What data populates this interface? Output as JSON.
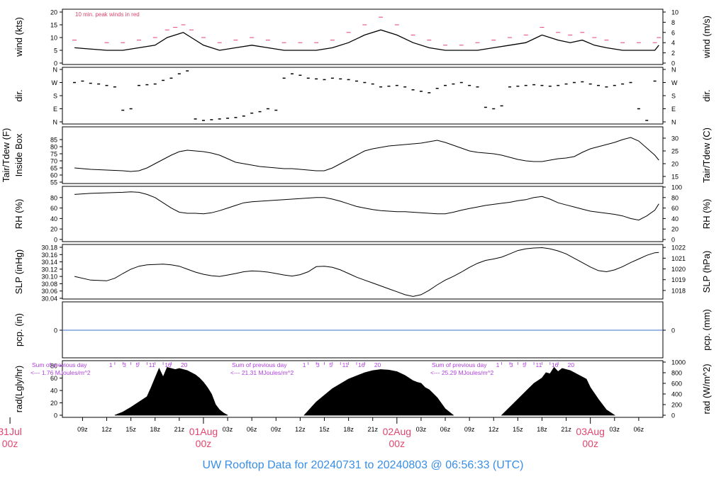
{
  "title": "UW Rooftop Data for 20240731  to  20240803 @ 06:56:33  (UTC)",
  "colors": {
    "trace": "#000000",
    "peak": "#e0466e",
    "pcp_line": "#3b6fc9",
    "annotation": "#b040e0",
    "date_label": "#e0466e",
    "title": "#3a8ee6",
    "frame": "#000000"
  },
  "chart_data": [
    {
      "id": "wind",
      "type": "line",
      "ylabel_left": "wind (kts)",
      "ylabel_right": "wind (m/s)",
      "ylim": [
        0,
        20
      ],
      "yticks_left": [
        "0",
        "5",
        "10",
        "15",
        "20"
      ],
      "yticks_right": [
        "0",
        "2",
        "4",
        "6",
        "8",
        "10"
      ],
      "annotation": "10 min. peak winds in red",
      "series": [
        {
          "key": "mean",
          "x": [
            8,
            12,
            14,
            16,
            18,
            19.5,
            20.5,
            21.5,
            22.5,
            24,
            26,
            28,
            30,
            32,
            34,
            36,
            38,
            40,
            42,
            44,
            46,
            48,
            50,
            52,
            54,
            56,
            58,
            60,
            62,
            64,
            66,
            68,
            69.5,
            71,
            72.5,
            74,
            76,
            78,
            80,
            80.5
          ],
          "y": [
            6,
            5,
            5,
            6,
            7,
            10,
            11,
            12,
            10,
            7,
            5,
            6,
            7,
            6,
            5,
            5,
            5,
            6,
            8,
            11,
            13,
            11,
            8,
            6,
            5,
            5,
            5,
            6,
            7,
            8,
            11,
            9,
            8,
            9,
            7,
            6,
            5,
            5,
            5,
            7
          ]
        },
        {
          "key": "peak",
          "x": [
            8,
            12,
            14,
            16,
            18,
            19.5,
            20.5,
            21.5,
            22.5,
            24,
            26,
            28,
            30,
            32,
            34,
            36,
            38,
            40,
            42,
            44,
            46,
            48,
            50,
            52,
            54,
            56,
            58,
            60,
            62,
            64,
            66,
            68,
            69.5,
            71,
            72.5,
            74,
            76,
            78,
            80,
            80.5
          ],
          "y": [
            9,
            8,
            8,
            9,
            10,
            13,
            14,
            15,
            13,
            10,
            8,
            9,
            10,
            9,
            8,
            8,
            8,
            9,
            12,
            15,
            18,
            15,
            11,
            9,
            7,
            7,
            8,
            9,
            10,
            11,
            14,
            12,
            11,
            12,
            10,
            9,
            8,
            8,
            8,
            10
          ]
        }
      ]
    },
    {
      "id": "direction",
      "type": "scatter",
      "ylabel_left": "dir.",
      "ylabel_right": "dir.",
      "ylim": [
        0,
        360
      ],
      "yticks_left": [
        "N",
        "E",
        "S",
        "W",
        "N"
      ],
      "yticks_right": [
        "N",
        "E",
        "S",
        "W",
        "N"
      ],
      "x": [
        8,
        9,
        10,
        11,
        12,
        13,
        14,
        15,
        16,
        17,
        18,
        19,
        20,
        21,
        22,
        23,
        24,
        25,
        26,
        27,
        28,
        29,
        30,
        31,
        32,
        33,
        34,
        35,
        36,
        37,
        38,
        39,
        40,
        41,
        42,
        43,
        44,
        45,
        46,
        47,
        48,
        49,
        50,
        51,
        52,
        53,
        54,
        55,
        56,
        57,
        58,
        59,
        60,
        61,
        62,
        63,
        64,
        65,
        66,
        67,
        68,
        69,
        70,
        71,
        72,
        73,
        74,
        75,
        76,
        77,
        78,
        79,
        80
      ],
      "y": [
        270,
        280,
        265,
        260,
        250,
        240,
        80,
        90,
        250,
        255,
        260,
        285,
        300,
        330,
        350,
        20,
        10,
        15,
        20,
        25,
        30,
        40,
        60,
        70,
        90,
        80,
        300,
        330,
        320,
        300,
        295,
        290,
        300,
        295,
        290,
        280,
        270,
        260,
        240,
        245,
        250,
        240,
        220,
        210,
        200,
        230,
        250,
        260,
        270,
        250,
        240,
        100,
        90,
        110,
        240,
        245,
        250,
        255,
        250,
        245,
        250,
        260,
        270,
        275,
        260,
        250,
        240,
        250,
        260,
        270,
        90,
        10,
        280
      ]
    },
    {
      "id": "tair",
      "type": "line",
      "ylabel_left": "Tair/Tdew (F)",
      "ylabel_left2": "Inside Box",
      "ylabel_right": "Tair/Tdew (C)",
      "ylim": [
        55,
        90
      ],
      "yticks_left": [
        "55",
        "60",
        "65",
        "70",
        "75",
        "80",
        "85"
      ],
      "yticks_right": [
        "15",
        "20",
        "25",
        "30"
      ],
      "x": [
        8,
        10,
        12,
        14,
        15,
        16,
        17,
        18,
        19,
        20,
        21,
        22,
        23,
        24,
        25,
        26,
        27,
        28,
        29,
        30,
        31,
        32,
        33,
        34,
        35,
        36,
        37,
        38,
        39,
        40,
        41,
        42,
        43,
        44,
        45,
        46,
        47,
        48,
        49,
        50,
        51,
        52,
        53,
        54,
        55,
        56,
        57,
        58,
        59,
        60,
        61,
        62,
        63,
        64,
        65,
        66,
        67,
        68,
        69,
        70,
        71,
        72,
        73,
        74,
        75,
        76,
        77,
        78,
        79,
        80,
        80.5
      ],
      "y": [
        65,
        64,
        63.5,
        63,
        62.5,
        63,
        65,
        68,
        71,
        74,
        76.5,
        77.5,
        77,
        76.5,
        75.5,
        74,
        71.5,
        69,
        68,
        67,
        66,
        65.5,
        65,
        64.5,
        64.5,
        64,
        63.5,
        63,
        63,
        65,
        68,
        71,
        74,
        77,
        78.5,
        79.5,
        80.5,
        81,
        81.5,
        82,
        82.5,
        83.5,
        84.5,
        83,
        81,
        79,
        77,
        76,
        75.5,
        75,
        74,
        72.5,
        71,
        70,
        69.5,
        69.5,
        70.5,
        71.5,
        72,
        73,
        76,
        78.5,
        80,
        81.5,
        83,
        85,
        86.5,
        84,
        79,
        74,
        70.5
      ]
    },
    {
      "id": "rh",
      "type": "line",
      "ylabel_left": "RH (%)",
      "ylabel_right": "RH (%)",
      "ylim": [
        0,
        100
      ],
      "yticks_left": [
        "0",
        "20",
        "40",
        "60",
        "80"
      ],
      "yticks_right": [
        "0",
        "20",
        "40",
        "60",
        "80",
        "100"
      ],
      "x": [
        8,
        10,
        12,
        14,
        15,
        16,
        17,
        18,
        19,
        20,
        21,
        22,
        23,
        24,
        25,
        26,
        27,
        28,
        29,
        30,
        31,
        32,
        33,
        34,
        35,
        36,
        37,
        38,
        39,
        40,
        41,
        42,
        43,
        44,
        45,
        46,
        47,
        48,
        49,
        50,
        51,
        52,
        53,
        54,
        55,
        56,
        57,
        58,
        59,
        60,
        61,
        62,
        63,
        64,
        65,
        66,
        67,
        68,
        69,
        70,
        71,
        72,
        73,
        74,
        75,
        76,
        77,
        78,
        79,
        80,
        80.5
      ],
      "y": [
        86,
        88,
        89,
        90,
        91,
        90,
        86,
        80,
        70,
        60,
        52,
        50,
        50,
        49,
        51,
        55,
        60,
        65,
        70,
        72,
        73,
        74,
        75,
        76,
        77,
        78,
        79,
        80,
        80,
        77,
        73,
        68,
        63,
        60,
        57,
        55,
        54,
        53,
        53,
        52,
        51,
        50,
        49,
        49,
        52,
        56,
        59,
        62,
        65,
        67,
        69,
        71,
        74,
        76,
        80,
        82,
        77,
        70,
        66,
        62,
        58,
        54,
        52,
        50,
        48,
        45,
        40,
        37,
        45,
        56,
        68
      ]
    },
    {
      "id": "slp",
      "type": "line",
      "ylabel_left": "SLP (inHg)",
      "ylabel_right": "SLP (hPa)",
      "ylim": [
        30.04,
        30.18
      ],
      "yticks_left": [
        "30.04",
        "30.06",
        "30.08",
        "30.10",
        "30.12",
        "30.14",
        "30.16",
        "30.18"
      ],
      "yticks_right": [
        "1018",
        "1019",
        "1020",
        "1021",
        "1022"
      ],
      "x": [
        8,
        10,
        12,
        13,
        14,
        15,
        16,
        17,
        18,
        19,
        20,
        21,
        22,
        23,
        24,
        25,
        26,
        27,
        28,
        29,
        30,
        31,
        32,
        33,
        34,
        35,
        36,
        37,
        38,
        39,
        40,
        41,
        42,
        43,
        44,
        45,
        46,
        47,
        48,
        49,
        50,
        51,
        52,
        53,
        54,
        55,
        56,
        57,
        58,
        59,
        60,
        61,
        62,
        63,
        64,
        65,
        66,
        67,
        68,
        69,
        70,
        71,
        72,
        73,
        74,
        75,
        76,
        77,
        78,
        79,
        80,
        80.5
      ],
      "y": [
        30.1,
        30.09,
        30.088,
        30.095,
        30.108,
        30.12,
        30.128,
        30.132,
        30.133,
        30.134,
        30.132,
        30.128,
        30.12,
        30.112,
        30.106,
        30.102,
        30.1,
        30.104,
        30.108,
        30.113,
        30.115,
        30.114,
        30.112,
        30.108,
        30.104,
        30.101,
        30.105,
        30.113,
        30.127,
        30.128,
        30.125,
        30.118,
        30.108,
        30.098,
        30.09,
        30.082,
        30.074,
        30.066,
        30.058,
        30.05,
        30.045,
        30.05,
        30.062,
        30.077,
        30.09,
        30.1,
        30.112,
        30.125,
        30.136,
        30.144,
        30.148,
        30.153,
        30.162,
        30.171,
        30.176,
        30.178,
        30.179,
        30.176,
        30.17,
        30.162,
        30.15,
        30.138,
        30.126,
        30.116,
        30.113,
        30.118,
        30.127,
        30.138,
        30.148,
        30.158,
        30.165,
        30.166
      ]
    },
    {
      "id": "pcp",
      "type": "line",
      "ylabel_left": "pcp. (in)",
      "ylabel_right": "pcp. (mm)",
      "ylim": [
        -1,
        1
      ],
      "yticks_left": [
        "0"
      ],
      "yticks_right": [
        "0"
      ],
      "x": [
        6.5,
        81
      ],
      "y": [
        0,
        0
      ]
    },
    {
      "id": "radiation",
      "type": "area",
      "ylabel_left": "rad(Lgly/hr)",
      "ylabel_right": "rad (W/m^2)",
      "ylim": [
        0,
        1000
      ],
      "yticks_left": [
        "0",
        "20",
        "40",
        "60",
        "80"
      ],
      "yticks_right": [
        "0",
        "200",
        "400",
        "600",
        "800",
        "1000"
      ],
      "hour_labels": [
        "1",
        "3",
        "5",
        "11",
        "16",
        "20"
      ],
      "days": [
        {
          "label": "Sum of previous day",
          "sum": "<--- 1.76 MJoules/m^2",
          "x": [
            13,
            14,
            15,
            16,
            17,
            17.5,
            18,
            18.5,
            19,
            19.5,
            20,
            20.5,
            21,
            21.5,
            22,
            22.5,
            23,
            23.5,
            24,
            24.5,
            25,
            25.5,
            26,
            26.5,
            27
          ],
          "y": [
            0,
            60,
            150,
            250,
            350,
            520,
            700,
            880,
            720,
            900,
            880,
            860,
            880,
            860,
            840,
            800,
            760,
            700,
            620,
            520,
            400,
            200,
            100,
            40,
            0
          ]
        },
        {
          "label": "Sum of previous day",
          "sum": "<--- 21.31 MJoules/m^2",
          "x": [
            36.5,
            38,
            40,
            42,
            44,
            45,
            46,
            47,
            48,
            49,
            50,
            50.5,
            51,
            51.5,
            52,
            53,
            54,
            55
          ],
          "y": [
            0,
            250,
            500,
            680,
            800,
            840,
            860,
            850,
            820,
            750,
            650,
            620,
            600,
            520,
            480,
            330,
            120,
            0
          ]
        },
        {
          "label": "Sum of previous day",
          "sum": "<--- 25.29 MJoules/m^2",
          "x": [
            61,
            62,
            63,
            64,
            65,
            66,
            66.5,
            67,
            67.5,
            68,
            68.5,
            69,
            69.5,
            70,
            70.5,
            71,
            71.5,
            72,
            73,
            74,
            75
          ],
          "y": [
            0,
            150,
            300,
            450,
            600,
            700,
            800,
            780,
            900,
            820,
            880,
            860,
            840,
            800,
            760,
            720,
            680,
            520,
            300,
            100,
            0
          ]
        }
      ]
    }
  ],
  "time_axis": {
    "tick_labels": [
      "09z",
      "12z",
      "15z",
      "18z",
      "21z",
      "03z",
      "06z",
      "09z",
      "12z",
      "15z",
      "18z",
      "21z",
      "03z",
      "06z",
      "09z",
      "12z",
      "15z",
      "18z",
      "21z",
      "03z",
      "06z"
    ],
    "tick_hours": [
      9,
      12,
      15,
      18,
      21,
      27,
      30,
      33,
      36,
      39,
      42,
      45,
      51,
      54,
      57,
      60,
      63,
      66,
      69,
      75,
      78
    ],
    "day_labels": [
      {
        "date": "31Jul",
        "time": "00z",
        "hour": 0
      },
      {
        "date": "01Aug",
        "time": "00z",
        "hour": 24
      },
      {
        "date": "02Aug",
        "time": "00z",
        "hour": 48
      },
      {
        "date": "03Aug",
        "time": "00z",
        "hour": 72
      }
    ],
    "xlim": [
      6.5,
      81
    ]
  }
}
